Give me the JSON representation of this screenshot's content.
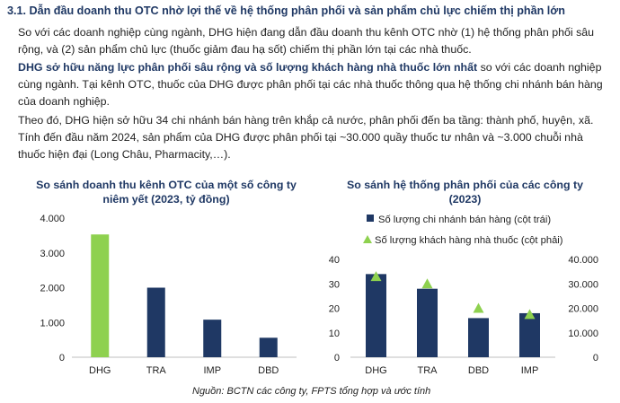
{
  "heading": "3.1. Dẫn đầu doanh thu OTC nhờ lợi thế về hệ thống phân phối và sản phẩm chủ lực chiếm thị phần lớn",
  "paragraph1": "So với các doanh nghiệp cùng ngành, DHG hiện đang dẫn đầu doanh thu kênh OTC nhờ (1) hệ thống phân phối sâu rộng, và (2) sản phẩm chủ lực (thuốc giảm đau hạ sốt) chiếm thị phần lớn tại các nhà thuốc.",
  "paragraph2_bold": "DHG sở hữu năng lực phân phối sâu rộng và số lượng khách hàng nhà thuốc lớn nhất",
  "paragraph2_rest": " so với các doanh nghiệp cùng ngành. Tại kênh OTC, thuốc của DHG được phân phối tại các nhà thuốc thông qua hệ thống chi nhánh bán hàng của doanh nghiệp.",
  "paragraph3": "Theo đó, DHG hiện sở hữu 34 chi nhánh bán hàng trên khắp cả nước, phân phối đến ba tầng: thành phố, huyện, xã. Tính đến đầu năm 2024, sản phẩm của DHG được phân phối tại ~30.000 quầy thuốc tư nhân và ~3.000 chuỗi nhà thuốc hiện đại (Long Châu, Pharmacity,…).",
  "source": "Nguồn: BCTN các công ty, FPTS tổng hợp và ước tính",
  "chart_data": [
    {
      "type": "bar",
      "title": "So sánh doanh thu kênh OTC của một số công ty niêm yết (2023, tỷ đồng)",
      "categories": [
        "DHG",
        "TRA",
        "IMP",
        "DBD"
      ],
      "values": [
        3530,
        2000,
        1080,
        560
      ],
      "ylim": [
        0,
        4000
      ],
      "yticks": [
        "0",
        "1.000",
        "2.000",
        "3.000",
        "4.000"
      ],
      "colors": [
        "#8ed14f",
        "#1f3864",
        "#1f3864",
        "#1f3864"
      ],
      "grid": false
    },
    {
      "type": "bar",
      "title": "So sánh hệ thống phân phối của các công ty (2023)",
      "categories": [
        "DHG",
        "TRA",
        "DBD",
        "IMP"
      ],
      "series": [
        {
          "name": "Số lượng chi nhánh bán hàng (cột trái)",
          "values": [
            34,
            28,
            16,
            18
          ],
          "axis": "left",
          "color": "#1f3864",
          "kind": "bar"
        },
        {
          "name": "Số lượng khách hàng nhà thuốc (cột phải)",
          "values": [
            33000,
            30000,
            20000,
            17500
          ],
          "axis": "right",
          "color": "#8ed14f",
          "kind": "marker-triangle"
        }
      ],
      "ylim_left": [
        0,
        40
      ],
      "yticks_left": [
        "0",
        "10",
        "20",
        "30",
        "40"
      ],
      "ylim_right": [
        0,
        40000
      ],
      "yticks_right": [
        "0",
        "10.000",
        "20.000",
        "30.000",
        "40.000"
      ],
      "legend": "top",
      "grid": false
    }
  ]
}
